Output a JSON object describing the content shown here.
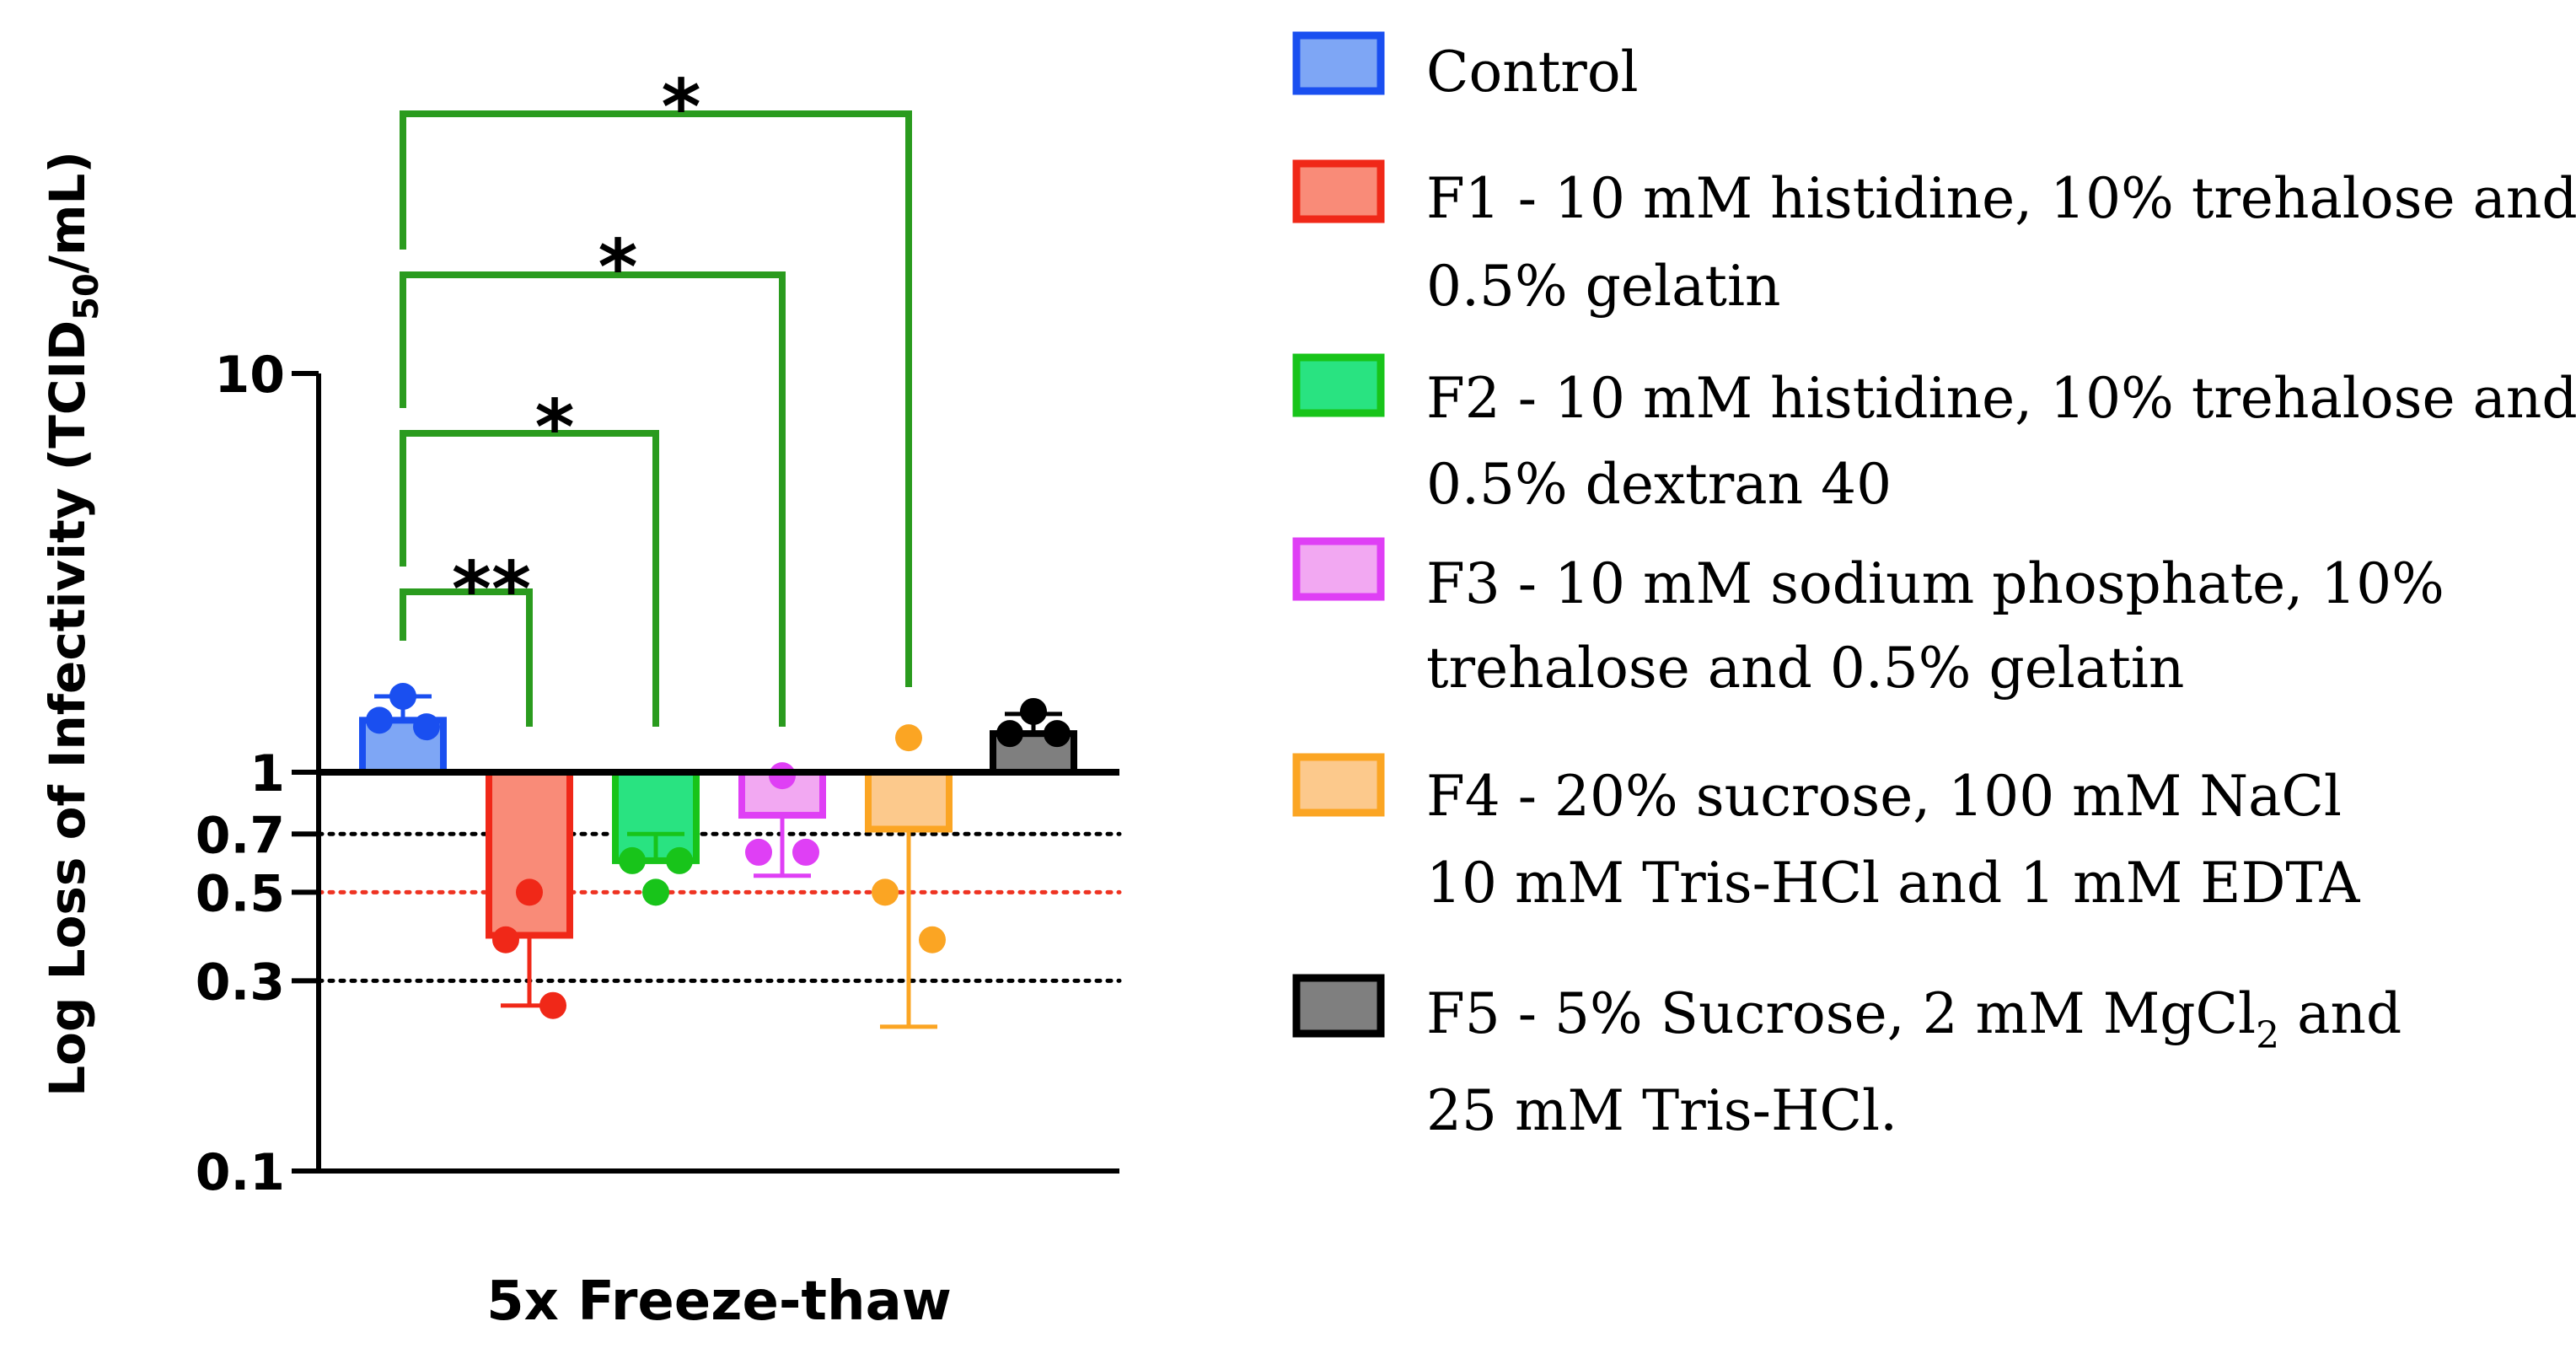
{
  "chart_data": {
    "type": "bar",
    "scale": "log",
    "ylim": [
      0.1,
      10
    ],
    "ylabel_main": "Log Loss of Infectivity (TCID",
    "ylabel_sub": "50",
    "ylabel_end": "/mL)",
    "xlabel": "5x Freeze-thaw",
    "yticks": [
      "10",
      "1",
      "0.7",
      "0.5",
      "0.3",
      "0.1"
    ],
    "ytick_values": [
      10,
      1,
      0.7,
      0.5,
      0.3,
      0.1
    ],
    "reference_lines": [
      {
        "value": 0.7,
        "color": "#000000"
      },
      {
        "value": 0.5,
        "color": "#ee3322"
      },
      {
        "value": 0.3,
        "color": "#000000"
      }
    ],
    "baseline": 1,
    "series": [
      {
        "name": "Control",
        "value": 1.35,
        "error": 1.55,
        "points": [
          1.55,
          1.35,
          1.3
        ],
        "fill": "#7ea6f5",
        "edge": "#1a4ff0"
      },
      {
        "name": "F1",
        "value": 0.39,
        "error": 0.26,
        "points": [
          0.5,
          0.38,
          0.26
        ],
        "fill": "#f98b78",
        "edge": "#f02818"
      },
      {
        "name": "F2",
        "value": 0.6,
        "error": 0.7,
        "points": [
          0.5,
          0.6,
          0.6
        ],
        "fill": "#29e381",
        "edge": "#18c41a"
      },
      {
        "name": "F3",
        "value": 0.78,
        "error": 0.55,
        "points": [
          0.98,
          0.63,
          0.63
        ],
        "fill": "#f2a8f2",
        "edge": "#df3ff5"
      },
      {
        "name": "F4",
        "value": 0.72,
        "error": 0.23,
        "points": [
          1.22,
          0.5,
          0.38
        ],
        "fill": "#fcc98c",
        "edge": "#fba523"
      },
      {
        "name": "F5",
        "value": 1.25,
        "error": 1.4,
        "points": [
          1.42,
          1.25,
          1.25
        ],
        "fill": "#7f7f7f",
        "edge": "#000000"
      }
    ],
    "significance": [
      {
        "label": "**",
        "from": "Control",
        "to": "F1"
      },
      {
        "label": "*",
        "from": "Control",
        "to": "F2"
      },
      {
        "label": "*",
        "from": "Control",
        "to": "F3"
      },
      {
        "label": "*",
        "from": "Control",
        "to": "F4"
      }
    ],
    "bracket_color": "#2a9b1e",
    "legend": [
      {
        "lines": [
          "Control"
        ],
        "fill": "#7ea6f5",
        "edge": "#1a4ff0"
      },
      {
        "lines": [
          "F1 - 10 mM histidine, 10% trehalose and",
          "0.5% gelatin"
        ],
        "fill": "#f98b78",
        "edge": "#f02818"
      },
      {
        "lines": [
          "F2 - 10 mM histidine, 10% trehalose and",
          "0.5% dextran 40"
        ],
        "fill": "#29e381",
        "edge": "#18c41a"
      },
      {
        "lines": [
          "F3 - 10 mM sodium phosphate, 10%",
          "trehalose and 0.5% gelatin"
        ],
        "fill": "#f2a8f2",
        "edge": "#df3ff5"
      },
      {
        "lines": [
          "F4 - 20% sucrose, 100 mM NaCl",
          "10 mM Tris-HCl and 1 mM EDTA"
        ],
        "fill": "#fcc98c",
        "edge": "#fba523"
      },
      {
        "lines": [
          "F5 - 5% Sucrose, 2 mM MgCl",
          "25 mM Tris-HCl."
        ],
        "sub": "2",
        "after_sub": " and",
        "fill": "#7f7f7f",
        "edge": "#000000"
      }
    ]
  }
}
